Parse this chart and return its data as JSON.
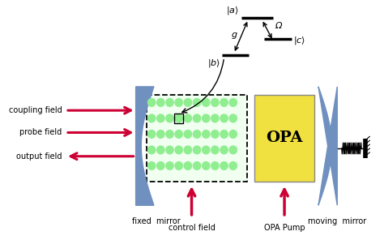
{
  "bg_color": "#ffffff",
  "mirror_color": "#7090c0",
  "opa_color": "#f0e040",
  "opa_text": "OPA",
  "atom_dot_color": "#90ee90",
  "arrow_red": "#cc0033",
  "labels": {
    "coupling_field": "coupling field",
    "probe_field": "probe field",
    "output_field": "output field",
    "fixed_mirror": "fixed  mirror",
    "moving_mirror": "moving  mirror",
    "control_field": "control field",
    "opa_pump": "OPA Pump"
  },
  "g_label": "g",
  "omega_label": "Ω",
  "level_a_label": "$|a\\rangle$",
  "level_b_label": "$|b\\rangle$",
  "level_c_label": "$|c\\rangle$"
}
